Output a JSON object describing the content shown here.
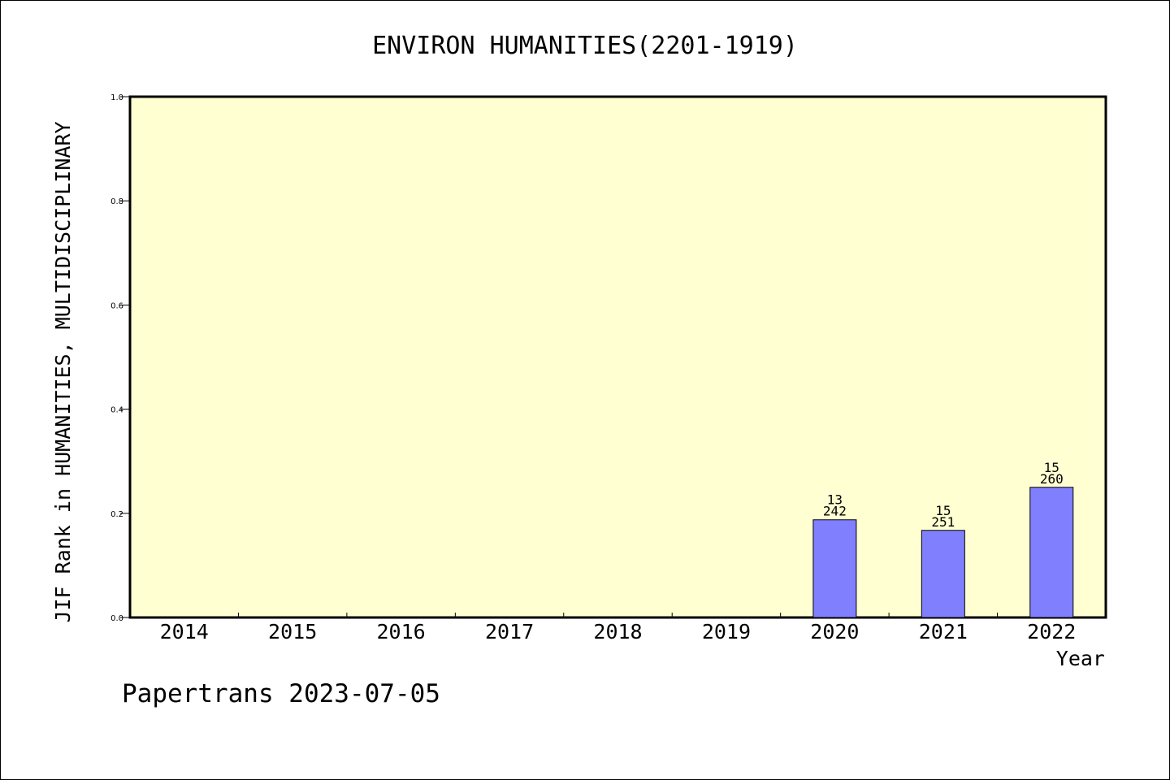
{
  "chart_data": {
    "type": "bar",
    "title": "ENVIRON HUMANITIES(2201-1919)",
    "xlabel": "Year",
    "ylabel": "JIF Rank in HUMANITIES, MULTIDISCIPLINARY",
    "categories": [
      "2014",
      "2015",
      "2016",
      "2017",
      "2018",
      "2019",
      "2020",
      "2021",
      "2022"
    ],
    "values": [
      null,
      null,
      null,
      null,
      null,
      null,
      0.1876,
      0.1673,
      0.25
    ],
    "bar_labels": [
      null,
      null,
      null,
      null,
      null,
      null,
      {
        "rank": "13",
        "total": "242"
      },
      {
        "rank": "15",
        "total": "251"
      },
      {
        "rank": "15",
        "total": "260"
      }
    ],
    "ylim": [
      0,
      1.0
    ],
    "yticks": [
      "0.0",
      "0.2",
      "0.4",
      "0.6",
      "0.8",
      "1.0"
    ],
    "ytick_values": [
      0,
      0.2,
      0.4,
      0.6,
      0.8,
      1.0
    ],
    "grid": false,
    "legend": "none",
    "colors": {
      "plot_background": "#ffffd2",
      "bar_fill": "#8080ff",
      "bar_stroke": "#000000"
    }
  },
  "footer": {
    "text": "Papertrans 2023-07-05"
  }
}
